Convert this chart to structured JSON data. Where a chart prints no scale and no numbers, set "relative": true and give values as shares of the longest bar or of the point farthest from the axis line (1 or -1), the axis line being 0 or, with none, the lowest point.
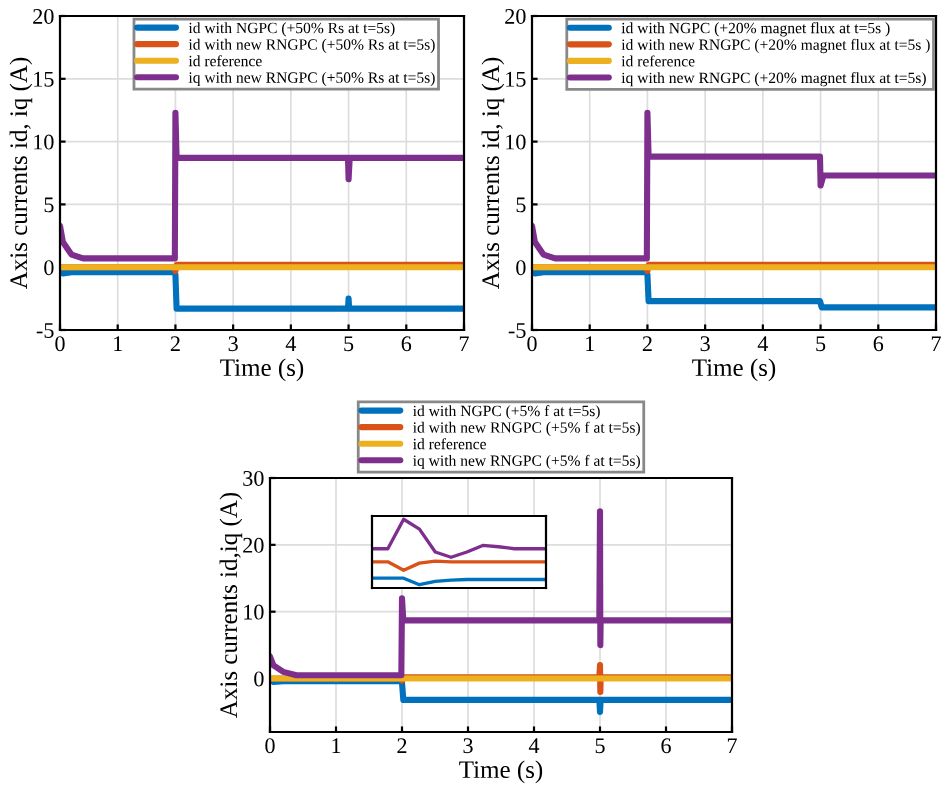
{
  "chart_data": [
    {
      "type": "line",
      "xlabel": "Time (s)",
      "ylabel": "Axis currents id, iq (A)",
      "xlim": [
        0,
        7
      ],
      "ylim": [
        -5,
        20
      ],
      "xticks": [
        0,
        1,
        2,
        3,
        4,
        5,
        6,
        7
      ],
      "yticks": [
        -5,
        0,
        5,
        10,
        15,
        20
      ],
      "grid": true,
      "legend": "top",
      "series": [
        {
          "name": "id with NGPC (+50% Rs at t=5s)",
          "color": "#0072bd",
          "x": [
            0,
            0.05,
            0.2,
            1.99,
            2.0,
            2.02,
            4.99,
            5.0,
            5.01,
            7
          ],
          "values": [
            0,
            -0.5,
            -0.4,
            -0.4,
            -0.6,
            -3.3,
            -3.3,
            -2.5,
            -3.3,
            -3.3
          ]
        },
        {
          "name": "id with new RNGPC (+50% Rs at t=5s)",
          "color": "#d95319",
          "x": [
            0,
            1.99,
            2.0,
            2.02,
            7
          ],
          "values": [
            0,
            0,
            -0.3,
            0.2,
            0.2
          ]
        },
        {
          "name": "id reference",
          "color": "#edb120",
          "x": [
            0,
            7
          ],
          "values": [
            0,
            0
          ]
        },
        {
          "name": "iq with new RNGPC (+50% Rs at t=5s)",
          "color": "#7e2f8e",
          "x": [
            0,
            0.05,
            0.2,
            0.4,
            1.99,
            2.0,
            2.02,
            2.1,
            4.99,
            5.0,
            5.02,
            7
          ],
          "values": [
            3.3,
            2,
            1,
            0.7,
            0.7,
            12.3,
            8.7,
            8.7,
            8.7,
            7,
            8.7,
            8.7
          ]
        }
      ]
    },
    {
      "type": "line",
      "xlabel": "Time (s)",
      "ylabel": "Axis currents id, iq (A)",
      "xlim": [
        0,
        7
      ],
      "ylim": [
        -5,
        20
      ],
      "xticks": [
        0,
        1,
        2,
        3,
        4,
        5,
        6,
        7
      ],
      "yticks": [
        -5,
        0,
        5,
        10,
        15,
        20
      ],
      "grid": true,
      "legend": "top",
      "series": [
        {
          "name": "id with NGPC (+20% magnet flux at t=5s )",
          "color": "#0072bd",
          "x": [
            0,
            0.05,
            0.2,
            1.99,
            2.0,
            2.02,
            4.99,
            5.02,
            7
          ],
          "values": [
            0,
            -0.5,
            -0.4,
            -0.4,
            -0.6,
            -2.7,
            -2.7,
            -3.2,
            -3.2
          ]
        },
        {
          "name": "id with new RNGPC (+20% magnet flux at t=5s )",
          "color": "#d95319",
          "x": [
            0,
            1.99,
            2.0,
            2.02,
            7
          ],
          "values": [
            0,
            0,
            -0.3,
            0.2,
            0.2
          ]
        },
        {
          "name": "id reference",
          "color": "#edb120",
          "x": [
            0,
            7
          ],
          "values": [
            0,
            0
          ]
        },
        {
          "name": "iq with new RNGPC (+20% magnet flux at t=5s)",
          "color": "#7e2f8e",
          "x": [
            0,
            0.05,
            0.2,
            0.4,
            1.99,
            2.0,
            2.02,
            2.1,
            4.99,
            5.0,
            5.05,
            7
          ],
          "values": [
            3.3,
            2,
            1,
            0.7,
            0.7,
            12.3,
            8.8,
            8.8,
            8.8,
            6.5,
            7.3,
            7.3
          ]
        }
      ]
    },
    {
      "type": "line",
      "xlabel": "Time (s)",
      "ylabel": "Axis currents id,iq (A)",
      "xlim": [
        0,
        7
      ],
      "ylim": [
        -8,
        30
      ],
      "xticks": [
        0,
        1,
        2,
        3,
        4,
        5,
        6,
        7
      ],
      "yticks": [
        0,
        10,
        20,
        30
      ],
      "grid": true,
      "legend": "top",
      "series": [
        {
          "name": "id with NGPC (+5% f at t=5s)",
          "color": "#0072bd",
          "x": [
            0,
            0.05,
            0.2,
            1.99,
            2.0,
            2.02,
            4.99,
            5.0,
            5.01,
            7
          ],
          "values": [
            0,
            -0.5,
            -0.4,
            -0.4,
            -0.6,
            -3.2,
            -3.2,
            -5,
            -3.2,
            -3.2
          ]
        },
        {
          "name": "id with new RNGPC (+5% f at t=5s)",
          "color": "#d95319",
          "x": [
            0,
            1.99,
            2.0,
            2.02,
            4.99,
            5.0,
            5.005,
            5.01,
            7
          ],
          "values": [
            0,
            0,
            -0.3,
            0.2,
            0.2,
            2,
            -2,
            0.2,
            0.2
          ]
        },
        {
          "name": "id reference",
          "color": "#edb120",
          "x": [
            0,
            7
          ],
          "values": [
            0,
            0
          ]
        },
        {
          "name": "iq with new RNGPC (+5% f at t=5s)",
          "color": "#7e2f8e",
          "x": [
            0,
            0.05,
            0.2,
            0.4,
            1.99,
            2.0,
            2.02,
            4.99,
            5.0,
            5.005,
            5.01,
            7
          ],
          "values": [
            3.3,
            2,
            1,
            0.5,
            0.5,
            12,
            8.7,
            8.7,
            25,
            5,
            8.7,
            8.7
          ]
        }
      ]
    },
    {
      "type": "line",
      "relative": true,
      "grid": true,
      "categories": [
        null,
        null,
        null,
        null,
        null,
        null,
        null,
        null,
        null,
        null,
        null,
        null
      ],
      "series": [
        {
          "color": "#0072bd",
          "values": [
            0.1,
            0.1,
            0.1,
            0,
            0.05,
            0.07,
            0.08,
            0.08,
            0.08,
            0.08,
            0.08,
            0.08
          ]
        },
        {
          "color": "#d95319",
          "values": [
            0.35,
            0.35,
            0.22,
            0.33,
            0.36,
            0.35,
            0.35,
            0.35,
            0.35,
            0.35,
            0.35,
            0.35
          ]
        },
        {
          "color": "#7e2f8e",
          "values": [
            0.55,
            0.55,
            1.0,
            0.85,
            0.5,
            0.42,
            0.5,
            0.6,
            0.58,
            0.55,
            0.55,
            0.55
          ]
        }
      ]
    }
  ]
}
